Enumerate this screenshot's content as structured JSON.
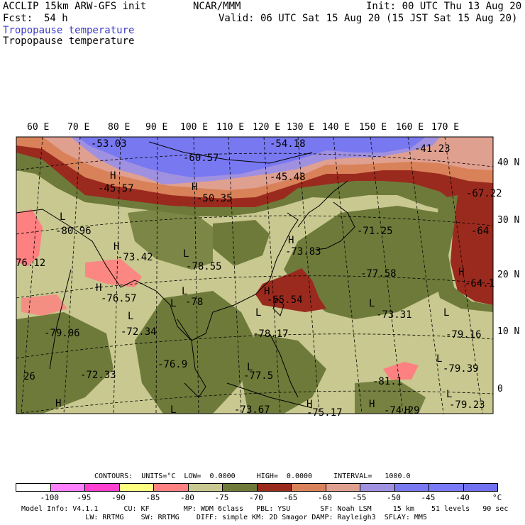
{
  "header": {
    "model": "ACCLIP 15km ARW-GFS init",
    "org": "NCAR/MMM",
    "init": "Init: 00 UTC Thu 13 Aug 20",
    "fcst_label": "Fcst:",
    "fcst_value": "54 h",
    "valid": "Valid: 06 UTC Sat 15 Aug 20 (15 JST Sat 15 Aug 20)",
    "field1": "Tropopause temperature",
    "field2": "Tropopause temperature"
  },
  "colors": {
    "field1": "#3c3cc8",
    "bins": [
      "#ffffff",
      "#ff80ff",
      "#ff40d0",
      "#ffff80",
      "#ff8080",
      "#c8c890",
      "#6e7a3a",
      "#9b2a1e",
      "#d9825a",
      "#e0a090",
      "#a090e0",
      "#7878f0",
      "#7a7af8",
      "#7070f0"
    ]
  },
  "map": {
    "lon_labels": [
      "60 E",
      "70 E",
      "80 E",
      "90 E",
      "100 E",
      "110 E",
      "120 E",
      "130 E",
      "140 E",
      "150 E",
      "160 E",
      "170 E"
    ],
    "lat_labels": [
      "40 N",
      "30 N",
      "20 N",
      "10 N",
      "0"
    ],
    "markers": [
      {
        "t": "-53.03"
      },
      {
        "t": "-60.57"
      },
      {
        "t": "-54.18"
      },
      {
        "t": "-41.23"
      },
      {
        "t": "H"
      },
      {
        "t": "-45.57"
      },
      {
        "t": "-45.48"
      },
      {
        "t": "H"
      },
      {
        "t": "-50.35"
      },
      {
        "t": "-67.22"
      },
      {
        "t": "L"
      },
      {
        "t": "-80.96"
      },
      {
        "t": "H"
      },
      {
        "t": "-73.42"
      },
      {
        "t": "L"
      },
      {
        "t": "-78.55"
      },
      {
        "t": "-71.25"
      },
      {
        "t": "H"
      },
      {
        "t": "-73.83"
      },
      {
        "t": "-64"
      },
      {
        "t": "76.12"
      },
      {
        "t": "H"
      },
      {
        "t": "-76.57"
      },
      {
        "t": "L"
      },
      {
        "t": "-77.58"
      },
      {
        "t": "L"
      },
      {
        "t": "-78"
      },
      {
        "t": "H"
      },
      {
        "t": "-65.54"
      },
      {
        "t": "H"
      },
      {
        "t": "-64.1"
      },
      {
        "t": "L"
      },
      {
        "t": "-73.31"
      },
      {
        "t": "-79.06"
      },
      {
        "t": "L"
      },
      {
        "t": "-72.34"
      },
      {
        "t": "L"
      },
      {
        "t": "-78.17"
      },
      {
        "t": "L"
      },
      {
        "t": "-79.16"
      },
      {
        "t": "26"
      },
      {
        "t": "-76.9"
      },
      {
        "t": "L"
      },
      {
        "t": "-79.39"
      },
      {
        "t": "-72.33"
      },
      {
        "t": "L"
      },
      {
        "t": "-77.5"
      },
      {
        "t": "-81.1"
      },
      {
        "t": "L"
      },
      {
        "t": "-79.23"
      },
      {
        "t": "H"
      },
      {
        "t": "-73.67"
      },
      {
        "t": "H"
      },
      {
        "t": "-75.17"
      },
      {
        "t": "-74.29"
      },
      {
        "t": "H"
      },
      {
        "t": "L"
      },
      {
        "t": "H"
      }
    ]
  },
  "legend": {
    "contours": "CONTOURS:  UNITS=°C  LOW=  0.0000     HIGH=  0.0000     INTERVAL=   1000.0",
    "labels": [
      "-100",
      "-95",
      "-90",
      "-85",
      "-80",
      "-75",
      "-70",
      "-65",
      "-60",
      "-55",
      "-50",
      "-45",
      "-40",
      "°C"
    ],
    "model_info": "Model Info: V4.1.1      CU: KF        MP: WDM 6class   PBL: YSU       SF: Noah LSM     15 km    51 levels   90 sec",
    "model_info2": "               LW: RRTMG    SW: RRTMG    DIFF: simple KM: 2D Smagor DAMP: Rayleigh3  SFLAY: MM5"
  }
}
